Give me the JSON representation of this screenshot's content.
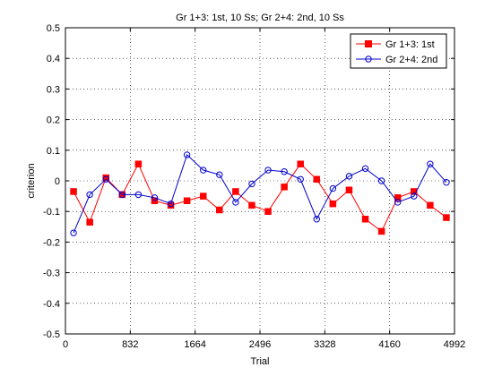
{
  "chart_data": {
    "type": "line",
    "title": "Gr 1+3: 1st, 10 Ss; Gr 2+4: 2nd, 10 Ss",
    "xlabel": "Trial",
    "ylabel": "criterion",
    "xlim": [
      0,
      4992
    ],
    "ylim": [
      -0.5,
      0.5
    ],
    "xticks": [
      0,
      832,
      1664,
      2496,
      3328,
      4160,
      4992
    ],
    "yticks": [
      -0.5,
      -0.4,
      -0.3,
      -0.2,
      -0.1,
      0,
      0.1,
      0.2,
      0.3,
      0.4,
      0.5
    ],
    "ytick_labels": [
      "-0.5",
      "-0.4",
      "-0.3",
      "-0.2",
      "-0.1",
      "0",
      "0.1",
      "0.2",
      "0.3",
      "0.4",
      "0.5"
    ],
    "grid": true,
    "legend_position": "top-right",
    "x": [
      104,
      312,
      520,
      728,
      936,
      1144,
      1352,
      1560,
      1768,
      1976,
      2184,
      2392,
      2600,
      2808,
      3016,
      3224,
      3432,
      3640,
      3848,
      4056,
      4264,
      4472,
      4680,
      4888
    ],
    "series": [
      {
        "name": "Gr 1+3: 1st",
        "color": "#ff0000",
        "marker": "square",
        "values": [
          -0.035,
          -0.135,
          0.01,
          -0.045,
          0.055,
          -0.065,
          -0.08,
          -0.065,
          -0.05,
          -0.095,
          -0.035,
          -0.08,
          -0.1,
          -0.02,
          0.055,
          0.005,
          -0.075,
          -0.03,
          -0.125,
          -0.165,
          -0.055,
          -0.035,
          -0.08,
          -0.12
        ]
      },
      {
        "name": "Gr 2+4: 2nd",
        "color": "#0000cc",
        "marker": "circle",
        "values": [
          -0.17,
          -0.045,
          0.005,
          -0.045,
          -0.045,
          -0.055,
          -0.075,
          0.085,
          0.035,
          0.02,
          -0.07,
          -0.01,
          0.035,
          0.03,
          0.005,
          -0.125,
          -0.025,
          0.015,
          0.04,
          0.0,
          -0.07,
          -0.05,
          0.055,
          -0.005
        ]
      }
    ]
  }
}
